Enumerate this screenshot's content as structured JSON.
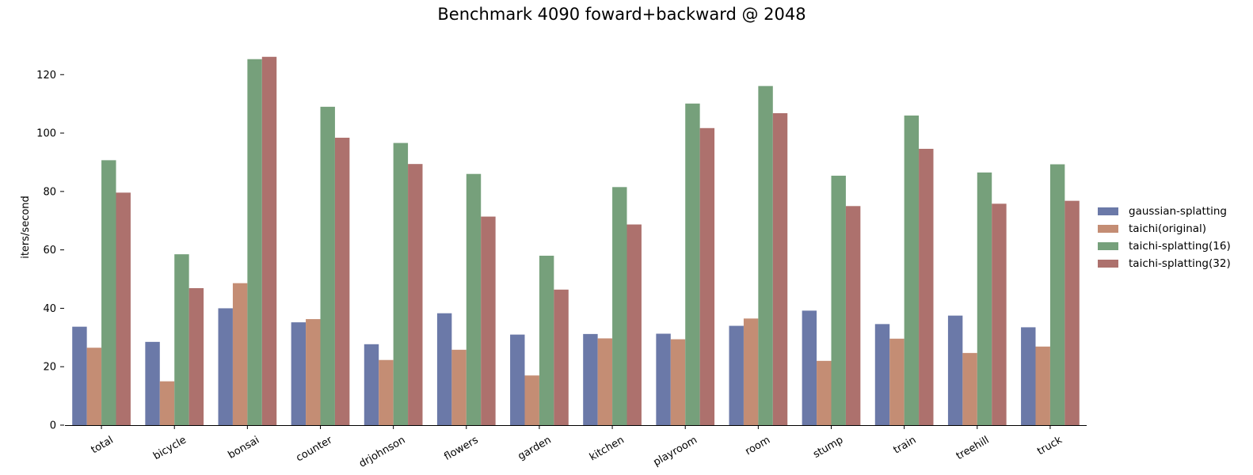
{
  "chart_data": {
    "type": "bar",
    "title": "Benchmark 4090 foward+backward @ 2048",
    "xlabel": "",
    "ylabel": "iters/second",
    "ylim": [
      0,
      132
    ],
    "yticks": [
      0,
      20,
      40,
      60,
      80,
      100,
      120
    ],
    "grid": false,
    "legend_position": "right",
    "categories": [
      "total",
      "bicycle",
      "bonsai",
      "counter",
      "drjohnson",
      "flowers",
      "garden",
      "kitchen",
      "playroom",
      "room",
      "stump",
      "train",
      "treehill",
      "truck"
    ],
    "series": [
      {
        "name": "gaussian-splatting",
        "color": "#6b79a8",
        "values": [
          33.7,
          28.5,
          40.0,
          35.2,
          27.7,
          38.3,
          31.0,
          31.2,
          31.3,
          34.0,
          39.2,
          34.6,
          37.5,
          33.5
        ]
      },
      {
        "name": "taichi(original)",
        "color": "#c48d74",
        "values": [
          26.5,
          15.0,
          48.6,
          36.3,
          22.3,
          25.8,
          17.0,
          29.7,
          29.4,
          36.5,
          22.0,
          29.6,
          24.7,
          26.9
        ]
      },
      {
        "name": "taichi-splatting(16)",
        "color": "#76a07b",
        "values": [
          90.7,
          58.5,
          125.3,
          109.0,
          96.6,
          86.0,
          58.0,
          81.5,
          110.1,
          116.1,
          85.4,
          106.0,
          86.5,
          89.3
        ]
      },
      {
        "name": "taichi-splatting(32)",
        "color": "#ad716d",
        "values": [
          79.6,
          46.9,
          126.1,
          98.4,
          89.4,
          71.4,
          46.4,
          68.7,
          101.7,
          106.8,
          75.0,
          94.6,
          75.8,
          76.8
        ]
      }
    ]
  }
}
